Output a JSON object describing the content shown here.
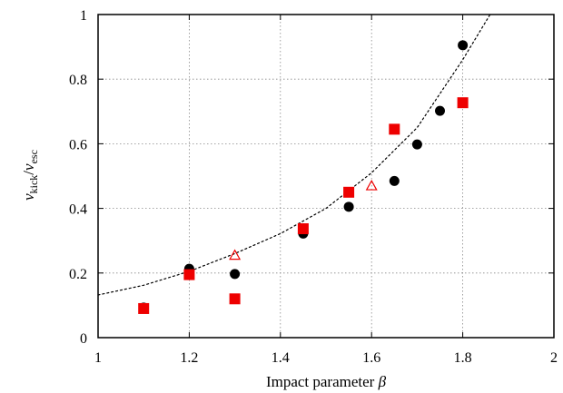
{
  "chart_data": {
    "type": "scatter",
    "title": "",
    "xlabel": "Impact parameter",
    "xlabel_symbol": "β",
    "ylabel_main": "v",
    "ylabel_sub_top": "kick",
    "ylabel_sep": "/",
    "ylabel_sub_bottom": "esc",
    "xlim": [
      1,
      2
    ],
    "ylim": [
      0,
      1
    ],
    "x_ticks": [
      "1",
      "1.2",
      "1.4",
      "1.6",
      "1.8",
      "2"
    ],
    "y_ticks": [
      "0",
      "0.2",
      "0.4",
      "0.6",
      "0.8",
      "1"
    ],
    "grid": true,
    "legend": "none",
    "series": [
      {
        "marker": "circle",
        "color": "#000000",
        "points": [
          {
            "x": 1.1,
            "y": 0.093
          },
          {
            "x": 1.2,
            "y": 0.213
          },
          {
            "x": 1.3,
            "y": 0.197
          },
          {
            "x": 1.45,
            "y": 0.322
          },
          {
            "x": 1.55,
            "y": 0.405
          },
          {
            "x": 1.65,
            "y": 0.485
          },
          {
            "x": 1.7,
            "y": 0.598
          },
          {
            "x": 1.75,
            "y": 0.702
          },
          {
            "x": 1.8,
            "y": 0.905
          }
        ]
      },
      {
        "marker": "square",
        "color": "#ee0000",
        "points": [
          {
            "x": 1.1,
            "y": 0.09
          },
          {
            "x": 1.2,
            "y": 0.195
          },
          {
            "x": 1.3,
            "y": 0.12
          },
          {
            "x": 1.45,
            "y": 0.337
          },
          {
            "x": 1.55,
            "y": 0.45
          },
          {
            "x": 1.65,
            "y": 0.645
          },
          {
            "x": 1.8,
            "y": 0.727
          }
        ]
      },
      {
        "marker": "triangle-open",
        "color": "#ee0000",
        "points": [
          {
            "x": 1.3,
            "y": 0.255
          },
          {
            "x": 1.6,
            "y": 0.47
          }
        ]
      }
    ],
    "fit_curve": {
      "style": "dotted",
      "color": "#000000",
      "points": [
        {
          "x": 1.0,
          "y": 0.132
        },
        {
          "x": 1.1,
          "y": 0.162
        },
        {
          "x": 1.2,
          "y": 0.205
        },
        {
          "x": 1.3,
          "y": 0.26
        },
        {
          "x": 1.4,
          "y": 0.322
        },
        {
          "x": 1.5,
          "y": 0.4
        },
        {
          "x": 1.6,
          "y": 0.51
        },
        {
          "x": 1.7,
          "y": 0.65
        },
        {
          "x": 1.8,
          "y": 0.86
        },
        {
          "x": 1.86,
          "y": 1.0
        }
      ]
    }
  }
}
